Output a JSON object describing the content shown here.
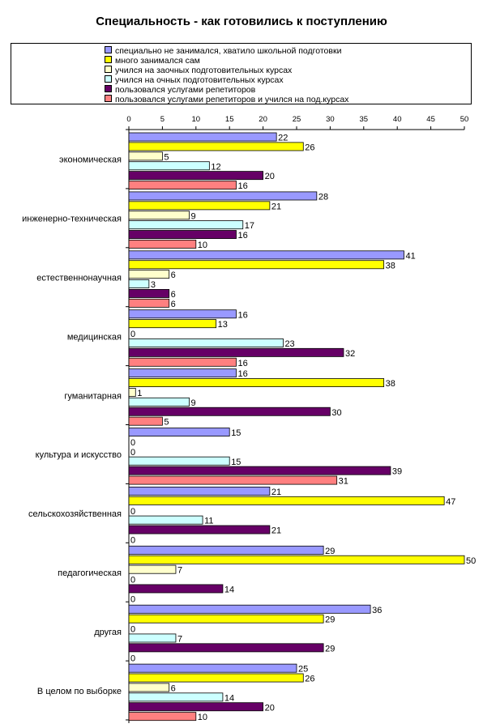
{
  "chart_data": {
    "type": "bar",
    "orientation": "horizontal",
    "title": "Специальность - как готовились к поступлению",
    "xlim": [
      0,
      50
    ],
    "x_ticks": [
      "0",
      "5",
      "10",
      "15",
      "20",
      "25",
      "30",
      "35",
      "40",
      "45",
      "50"
    ],
    "legend_position": "top",
    "grid": false,
    "categories": [
      "экономическая",
      "инженерно-техническая",
      "естественнонаучная",
      "медицинская",
      "гуманитарная",
      "культура и искусство",
      "сельскохозяйственная",
      "педагогическая",
      "другая",
      "В целом по выборке"
    ],
    "series": [
      {
        "name": "специально не занимался, хватило школьной подготовки",
        "color": "#9999FF",
        "values": [
          22,
          28,
          41,
          16,
          16,
          15,
          21,
          29,
          36,
          25
        ]
      },
      {
        "name": "много занимался сам",
        "color": "#FFFF00",
        "values": [
          26,
          21,
          38,
          13,
          38,
          0,
          47,
          50,
          29,
          26
        ]
      },
      {
        "name": "учился на заочных подготовительных курсах",
        "color": "#FFFFCC",
        "values": [
          5,
          9,
          6,
          0,
          1,
          0,
          0,
          7,
          0,
          6
        ]
      },
      {
        "name": "учился на очных подготовительных курсах",
        "color": "#CCFFFF",
        "values": [
          12,
          17,
          3,
          23,
          9,
          15,
          11,
          0,
          7,
          14
        ]
      },
      {
        "name": "пользовался услугами репетиторов",
        "color": "#660066",
        "values": [
          20,
          16,
          6,
          32,
          30,
          39,
          21,
          14,
          29,
          20
        ]
      },
      {
        "name": "пользовался услугами репетиторов и учился на под.курсах",
        "color": "#FF8080",
        "values": [
          16,
          10,
          6,
          16,
          5,
          31,
          0,
          0,
          0,
          10
        ]
      }
    ]
  }
}
